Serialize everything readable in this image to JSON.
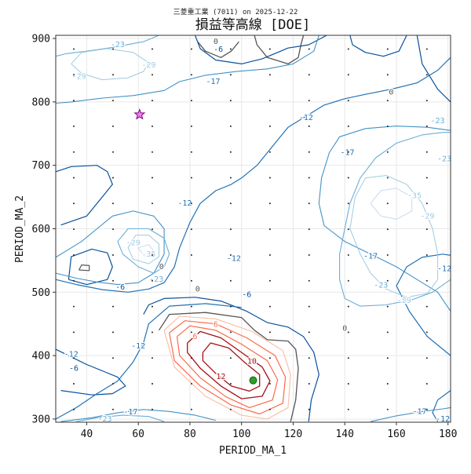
{
  "chart_data": {
    "type": "contour",
    "suptitle": "三菱重工業 (7011) on 2025-12-22",
    "title": "損益等高線 [DOE]",
    "xlabel": "PERIOD_MA_1",
    "ylabel": "PERIOD_MA_2",
    "xlim": [
      28,
      181
    ],
    "ylim": [
      295,
      905
    ],
    "xticks": [
      40,
      60,
      80,
      100,
      120,
      140,
      160,
      180
    ],
    "yticks": [
      300,
      400,
      500,
      600,
      700,
      800,
      900
    ],
    "grid": true,
    "contour_labels": [
      {
        "text": "0",
        "x": 69,
        "y": 540
      },
      {
        "text": "0",
        "x": 83,
        "y": 505
      },
      {
        "text": "0",
        "x": 140,
        "y": 443
      },
      {
        "text": "0",
        "x": 158,
        "y": 815
      },
      {
        "text": "0",
        "x": 90,
        "y": 897
      },
      {
        "text": "-6",
        "x": 53,
        "y": 508
      },
      {
        "text": "-6",
        "x": 35,
        "y": 380
      },
      {
        "text": "-6",
        "x": 91,
        "y": 883
      },
      {
        "text": "-6",
        "x": 102,
        "y": 496
      },
      {
        "text": "-12",
        "x": 78,
        "y": 640
      },
      {
        "text": "-12",
        "x": 97,
        "y": 553
      },
      {
        "text": "-12",
        "x": 60,
        "y": 415
      },
      {
        "text": "-12",
        "x": 34,
        "y": 402
      },
      {
        "text": "-12",
        "x": 125,
        "y": 775
      },
      {
        "text": "-12",
        "x": 179,
        "y": 537
      },
      {
        "text": "-12",
        "x": 178,
        "y": 300
      },
      {
        "text": "-17",
        "x": 89,
        "y": 832
      },
      {
        "text": "-17",
        "x": 57,
        "y": 311
      },
      {
        "text": "-17",
        "x": 141,
        "y": 720
      },
      {
        "text": "-17",
        "x": 150,
        "y": 557
      },
      {
        "text": "-17",
        "x": 169,
        "y": 312
      },
      {
        "text": "-23",
        "x": 52,
        "y": 890
      },
      {
        "text": "-23",
        "x": 47,
        "y": 298
      },
      {
        "text": "-23",
        "x": 67,
        "y": 520
      },
      {
        "text": "-23",
        "x": 154,
        "y": 511
      },
      {
        "text": "-23",
        "x": 176,
        "y": 770
      },
      {
        "text": "-23",
        "x": 181,
        "y": 710
      },
      {
        "text": "-29",
        "x": 37,
        "y": 840
      },
      {
        "text": "-29",
        "x": 64,
        "y": 858
      },
      {
        "text": "-29",
        "x": 58,
        "y": 578
      },
      {
        "text": "-29",
        "x": 163,
        "y": 487
      },
      {
        "text": "-29",
        "x": 172,
        "y": 620
      },
      {
        "text": "-35",
        "x": 64,
        "y": 560
      },
      {
        "text": "-35",
        "x": 167,
        "y": 652
      },
      {
        "text": "6",
        "x": 82,
        "y": 430
      },
      {
        "text": "6",
        "x": 90,
        "y": 449
      },
      {
        "text": "10",
        "x": 104,
        "y": 391
      },
      {
        "text": "12",
        "x": 92,
        "y": 367
      }
    ],
    "sample_points": {
      "x": [
        35,
        50,
        65,
        80,
        95,
        110,
        125,
        140,
        155,
        170
      ],
      "y": [
        320,
        360,
        420,
        480,
        540,
        600,
        660,
        720,
        780,
        840
      ]
    },
    "best_point": {
      "x": 104.5,
      "y": 361
    },
    "star_point": {
      "x": 60.5,
      "y": 780
    },
    "colors": {
      "neg_light": "#c6dbef",
      "neg_mid": "#6baed6",
      "neg_dark": "#08519c",
      "zero": "#555555",
      "pos_light": "#fcbba1",
      "pos_mid": "#fb6a4a",
      "pos_dark": "#a50f15",
      "star_fill": "#ee82ee",
      "best_fill": "#2ca02c"
    }
  }
}
